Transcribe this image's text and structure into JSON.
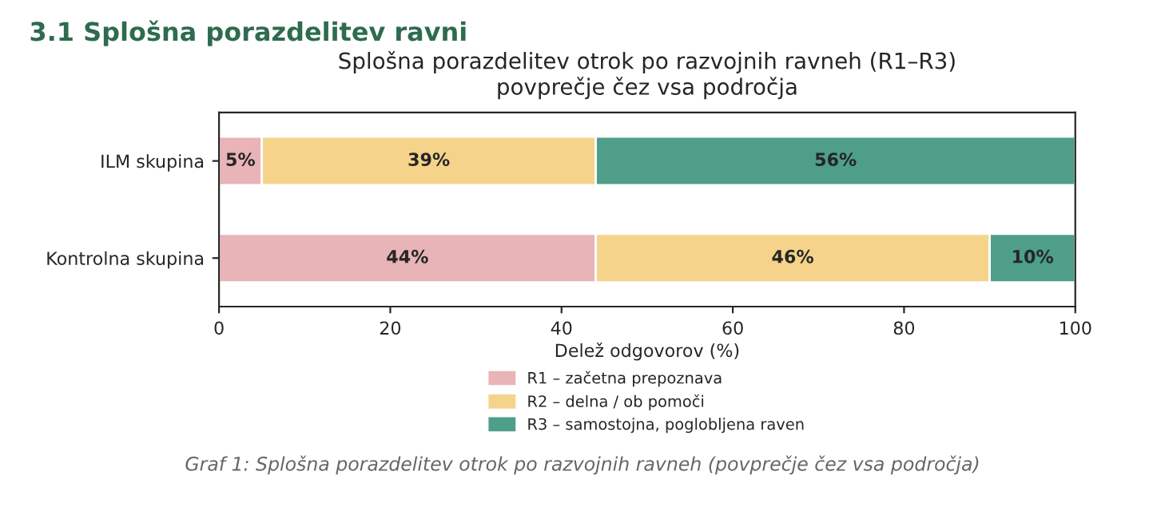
{
  "chart_data": {
    "type": "bar",
    "orientation": "horizontal",
    "stacked": true,
    "title": "Splošna porazdelitev otrok po razvojnih ravneh (R1–R3)\npovprečje čez vsa področja",
    "categories": [
      "ILM skupina",
      "Kontrolna skupina"
    ],
    "series": [
      {
        "name": "R1 – začetna prepoznava",
        "color": "#e8b4b8",
        "values": [
          5,
          44
        ],
        "value_labels": [
          "5%",
          "44%"
        ]
      },
      {
        "name": "R2 – delna / ob pomoči",
        "color": "#f5d38a",
        "values": [
          39,
          46
        ],
        "value_labels": [
          "39%",
          "46%"
        ]
      },
      {
        "name": "R3 – samostojna, poglobljena raven",
        "color": "#4e9e8a",
        "values": [
          56,
          10
        ],
        "value_labels": [
          "56%",
          "10%"
        ]
      }
    ],
    "xlabel": "Delež odgovorov (%)",
    "xlim": [
      0,
      100
    ],
    "xticks": [
      0,
      20,
      40,
      60,
      80,
      100
    ],
    "grid": false,
    "legend": "bottom",
    "annotations": [
      "3.1 Splošna porazdelitev ravni",
      "Graf 1: Splošna porazdelitev otrok po razvojnih ravneh (povprečje čez vsa področja)"
    ]
  }
}
